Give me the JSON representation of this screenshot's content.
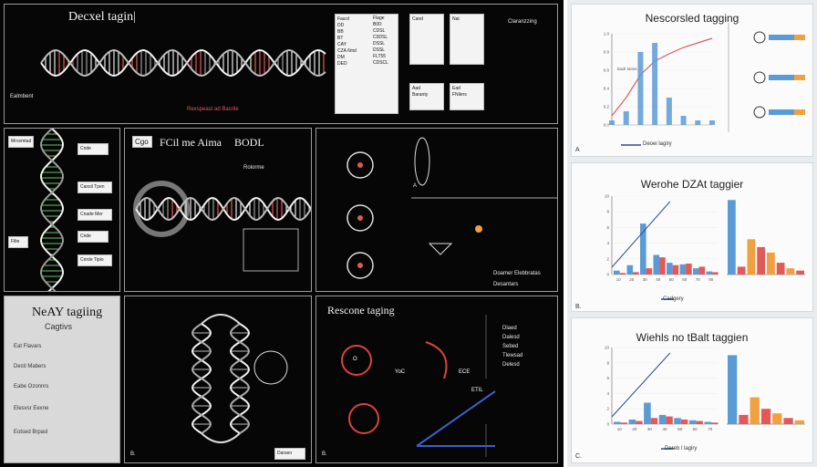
{
  "poster": {
    "top": {
      "title": "Decxel tagin|",
      "side_label": "Ealmbent",
      "table_head": [
        "Faa:d",
        "Flage",
        "Cand",
        "Nat"
      ],
      "table_rows": [
        [
          "DD",
          "B00:"
        ],
        [
          "BB",
          "CDSL"
        ],
        [
          "BT",
          "C0DSL"
        ],
        [
          "CAY",
          "DSSL"
        ],
        [
          "CZA 6md",
          "DSSL"
        ],
        [
          "DM",
          "FLT55"
        ],
        [
          "DED",
          "CDSCL"
        ]
      ],
      "box_left": "Aad\nBaranty",
      "box_right": "Ead\nFNilers",
      "note_title": "Claranzzing",
      "red_caption": "Rexspeast ad Bacrile"
    },
    "mid_left": {
      "side_label": "Mrcemtad",
      "step_labels": [
        "Cnde",
        "Cansil Tpen",
        "Cnade Mer",
        "Cnde",
        "Cnrde Tipio"
      ],
      "bottom_label": "Filte"
    },
    "mid_center": {
      "badge": "Cgo",
      "title": "FCil me Aima",
      "title2": "BODL",
      "caption": "Rolorme"
    },
    "mid_right": {
      "label_a": "A",
      "footer": "Doamer Elebbratas",
      "footer2": "Desantars"
    },
    "bottom_left": {
      "title": "NeAY tagiing",
      "subtitle": "Cagtivs",
      "items": [
        "Eat Flavars",
        "Desti Mabers",
        "Eabe Ozonnrs",
        "Elesvsr Eexne",
        "Eotsed Brpasl"
      ]
    },
    "bottom_center": {
      "label_b": "B.",
      "tag": "Darsen"
    },
    "bottom_right": {
      "title": "Rescone taging",
      "label_b": "B.",
      "circle_labels": [
        "O",
        "YoC",
        "ECE",
        "ETIL"
      ],
      "legend": [
        "Dlaed",
        "Dalesd",
        "Sebed",
        "Tlewsad",
        "Delesd"
      ]
    }
  },
  "panels": [
    {
      "title": "Nescorsled tagging",
      "letter": "A",
      "legend": "Deoei lagiry",
      "chart_data": {
        "type": "line",
        "ylim": [
          0,
          1
        ],
        "yticks": [
          "1.0",
          "0.8",
          "0.6",
          "0.4",
          "0.2",
          "0.0"
        ],
        "series": [
          {
            "values": [
              0.1,
              0.3,
              0.55,
              0.7,
              0.78,
              0.85,
              0.9,
              0.95
            ]
          },
          {
            "values": [
              0.05,
              0.15,
              0.8,
              0.9,
              0.3,
              0.1,
              0.05,
              0.05
            ]
          }
        ],
        "inset_label": "Eadr tanss"
      }
    },
    {
      "title": "Werohe DZAt taggier",
      "letter": "B.",
      "legend": "Cadgery",
      "chart_data": {
        "type": "bar",
        "ylim": [
          0,
          10
        ],
        "yticks": [
          "10",
          "8",
          "6",
          "4",
          "2",
          "0"
        ],
        "categories": [
          "10",
          "20",
          "30",
          "40",
          "50",
          "60",
          "70",
          "80"
        ],
        "series": [
          {
            "values": [
              0.5,
              1.2,
              6.5,
              2.5,
              1.5,
              1.3,
              0.8,
              0.4
            ]
          },
          {
            "values": [
              0.2,
              0.3,
              0.8,
              2.2,
              1.2,
              1.4,
              1.0,
              0.3
            ]
          }
        ],
        "right_values": [
          9.5,
          1.0,
          4.5,
          3.5,
          2.8,
          1.5,
          0.8,
          0.5
        ]
      }
    },
    {
      "title": "Wiehls no tBalt taggien",
      "letter": "C.",
      "legend": "Dereb l lagiry",
      "chart_data": {
        "type": "bar",
        "ylim": [
          0,
          10
        ],
        "yticks": [
          "10",
          "8",
          "6",
          "4",
          "2",
          "0"
        ],
        "categories": [
          "10",
          "20",
          "30",
          "40",
          "50",
          "60",
          "70"
        ],
        "series": [
          {
            "values": [
              0.3,
              0.6,
              2.8,
              1.2,
              0.8,
              0.5,
              0.3
            ]
          },
          {
            "values": [
              0.2,
              0.4,
              0.8,
              1.0,
              0.6,
              0.4,
              0.2
            ]
          }
        ],
        "right_values": [
          9.0,
          1.2,
          3.5,
          2.0,
          1.4,
          0.8,
          0.5
        ]
      }
    }
  ],
  "colors": {
    "blue": "#5b9bd5",
    "red": "#e05a5a",
    "navy": "#2f4b8a",
    "orange": "#f0a040"
  }
}
